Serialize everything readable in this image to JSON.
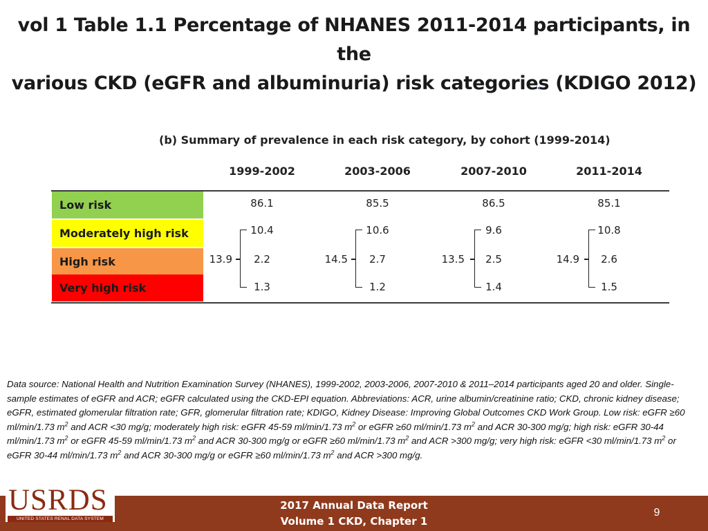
{
  "slide": {
    "title_line1": "vol 1 Table 1.1 Percentage of NHANES 2011-2014 participants, in the",
    "title_line2": "various CKD (eGFR and albuminuria) risk categories (KDIGO 2012)"
  },
  "table": {
    "subtitle": "(b)  Summary of prevalence in each risk category, by cohort (1999-2014)",
    "columns": [
      "1999-2002",
      "2003-2006",
      "2007-2010",
      "2011-2014"
    ],
    "rows": [
      {
        "label": "Low risk",
        "color": "#92d050",
        "values": [
          "86.1",
          "85.5",
          "86.5",
          "85.1"
        ]
      },
      {
        "label": "Moderately high risk",
        "color": "#ffff00",
        "values": [
          "10.4",
          "10.6",
          "9.6",
          "10.8"
        ]
      },
      {
        "label": "High risk",
        "color": "#f79646",
        "values": [
          "2.2",
          "2.7",
          "2.5",
          "2.6"
        ]
      },
      {
        "label": "Very high risk",
        "color": "#ff0000",
        "values": [
          "1.3",
          "1.2",
          "1.4",
          "1.5"
        ]
      }
    ],
    "ckd_totals": [
      "13.9",
      "14.5",
      "13.5",
      "14.9"
    ]
  },
  "footnote": {
    "p1": "Data source: National Health and Nutrition Examination Survey (NHANES), 1999-2002, 2003-2006, 2007-2010 & 2011–2014 participants aged 20 and older. Single-sample estimates of eGFR and ACR; eGFR calculated using the CKD-EPI equation. Abbreviations: ACR, urine albumin/creatinine ratio; CKD, chronic kidney disease; eGFR, estimated glomerular filtration rate; GFR, glomerular filtration rate; KDIGO, Kidney Disease: Improving Global Outcomes CKD Work Group. Low risk: eGFR ≥60 ml/min/1.73 m",
    "p2": " and ACR <30 mg/g; moderately high risk: eGFR 45-59 ml/min/1.73 m",
    "p3": " or eGFR ≥60 ml/min/1.73 m",
    "p4": " and ACR 30-300 mg/g; high risk: eGFR 30-44 ml/min/1.73 m",
    "p5": " or eGFR 45-59 ml/min/1.73 m",
    "p6": " and ACR 30-300 mg/g or eGFR ≥60 ml/min/1.73 m",
    "p7": " and ACR >300 mg/g; very high risk: eGFR <30 ml/min/1.73 m",
    "p8": " or eGFR 30-44 ml/min/1.73 m",
    "p9": " and ACR 30-300 mg/g or eGFR ≥60 ml/min/1.73 m",
    "p10": " and ACR >300 mg/g.",
    "sup": "2"
  },
  "footer": {
    "logo_text": "USRDS",
    "logo_subtext": "UNITED STATES RENAL DATA SYSTEM",
    "line1": "2017 Annual Data Report",
    "line2": "Volume 1 CKD, Chapter 1",
    "page_number": "9"
  }
}
